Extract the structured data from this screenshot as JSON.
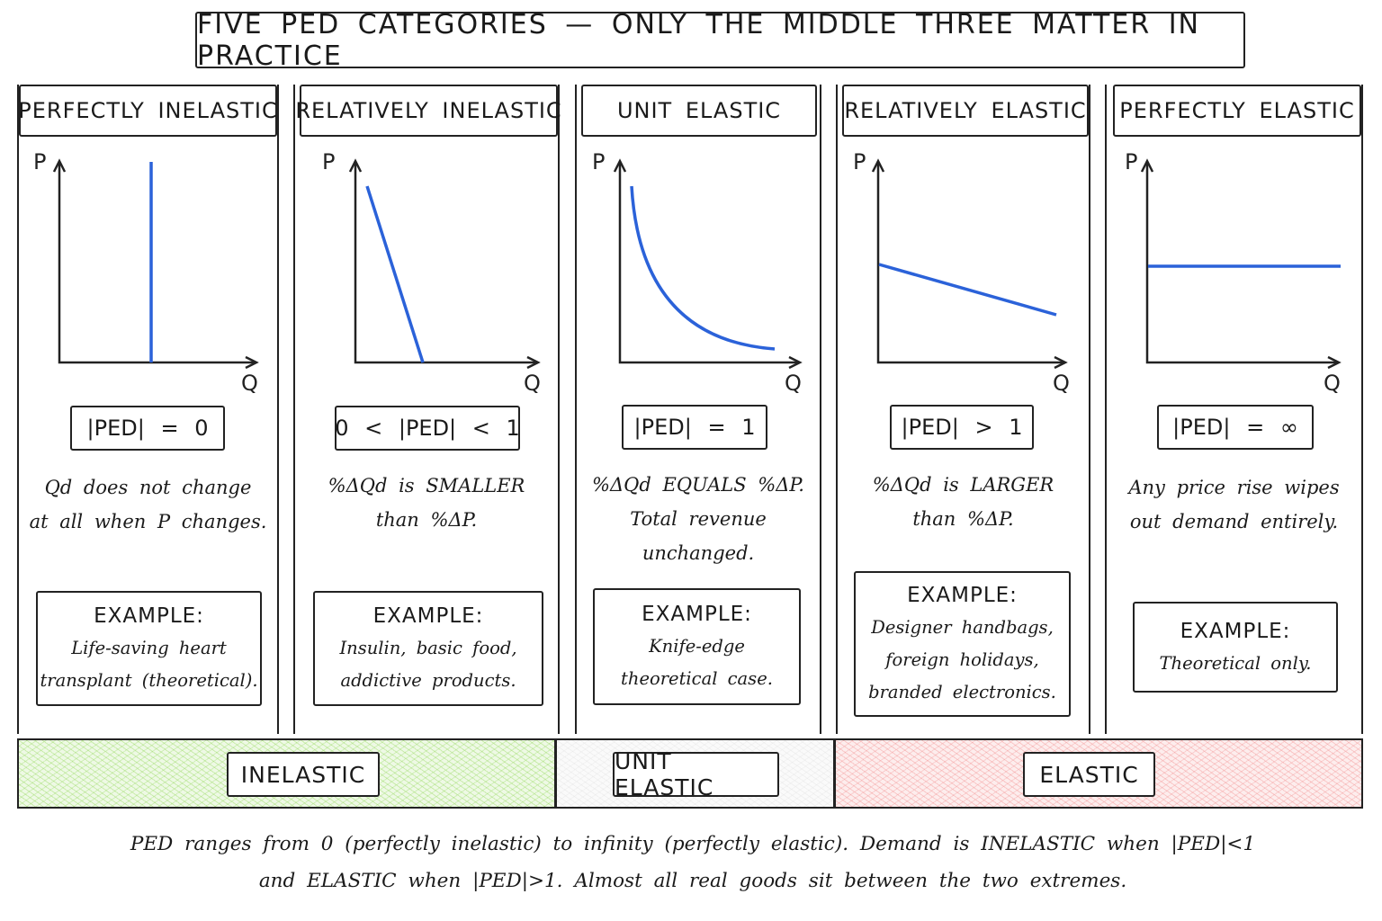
{
  "title": "FIVE PED CATEGORIES — ONLY THE MIDDLE THREE MATTER IN PRACTICE",
  "axis": {
    "p": "P",
    "q": "Q"
  },
  "curve_color": "#2b62d9",
  "example_label": "EXAMPLE:",
  "panels": [
    {
      "header": "PERFECTLY INELASTIC",
      "ped": "|PED| = 0",
      "desc": [
        "Qd does not change",
        "at all when P changes."
      ],
      "example": [
        "Life-saving heart",
        "transplant (theoretical)."
      ]
    },
    {
      "header": "RELATIVELY INELASTIC",
      "ped": "0 < |PED| < 1",
      "desc": [
        "%ΔQd is SMALLER",
        "than %ΔP."
      ],
      "example": [
        "Insulin, basic food,",
        "addictive products."
      ]
    },
    {
      "header": "UNIT ELASTIC",
      "ped": "|PED| = 1",
      "desc": [
        "%ΔQd EQUALS %ΔP.",
        "Total revenue",
        "unchanged."
      ],
      "example": [
        "Knife-edge",
        "theoretical case."
      ]
    },
    {
      "header": "RELATIVELY ELASTIC",
      "ped": "|PED| > 1",
      "desc": [
        "%ΔQd is LARGER",
        "than %ΔP."
      ],
      "example": [
        "Designer handbags,",
        "foreign holidays,",
        "branded electronics."
      ]
    },
    {
      "header": "PERFECTLY ELASTIC",
      "ped": "|PED| = ∞",
      "desc": [
        "Any price rise wipes",
        "out demand entirely."
      ],
      "example": [
        "Theoretical only."
      ]
    }
  ],
  "bands": [
    {
      "label": "INELASTIC",
      "color": "#7fd13b"
    },
    {
      "label": "UNIT ELASTIC",
      "color": "#dddddd"
    },
    {
      "label": "ELASTIC",
      "color": "#f07a7a"
    }
  ],
  "footer": [
    "PED ranges from 0 (perfectly inelastic) to infinity (perfectly elastic). Demand is INELASTIC when |PED|<1",
    "and ELASTIC when |PED|>1. Almost all real goods sit between the two extremes."
  ]
}
